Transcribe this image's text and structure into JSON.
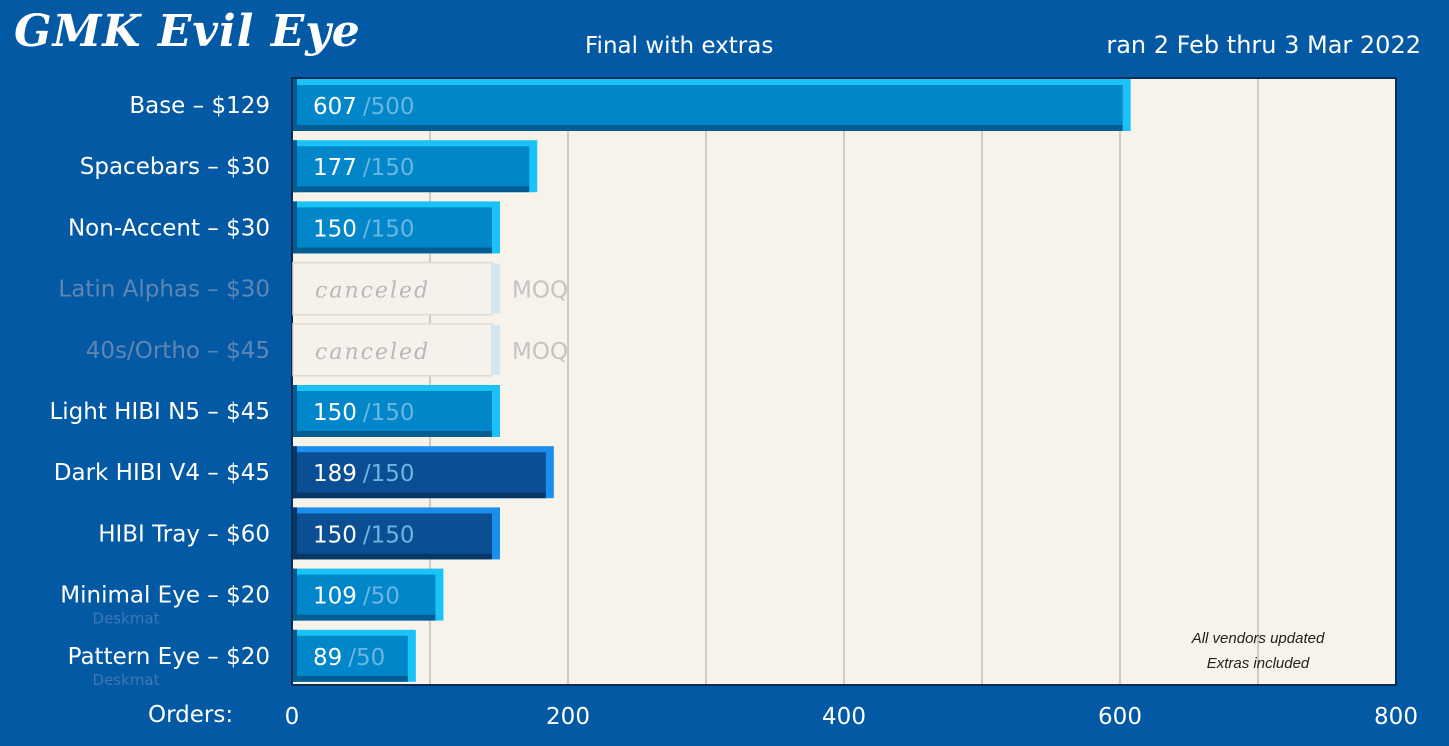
{
  "header": {
    "brand": "GMK Evil Eye",
    "subtitle": "Final with extras",
    "date_range": "ran 2 Feb thru 3 Mar 2022"
  },
  "note": {
    "line1": "All vendors updated",
    "line2": "Extras included"
  },
  "colors": {
    "background": "#0359a3",
    "plot_background": "#f7f2ea",
    "light_bar": "#0186c9",
    "light_bar_accent": "#19c3f7",
    "dark_bar": "#0a4f94",
    "dark_bar_accent": "#1a8eec",
    "goal_text": "#6ab6e0",
    "canceled_text": "#b8b8b8"
  },
  "chart_data": {
    "type": "bar",
    "orientation": "horizontal",
    "xlabel": "Orders:",
    "xlim": [
      0,
      800
    ],
    "xticks": [
      0,
      200,
      400,
      600,
      800
    ],
    "grid": true,
    "bars": [
      {
        "label": "Base – $129",
        "value": 607,
        "goal": 500,
        "value_label": "607",
        "goal_label": "/500",
        "style": "light",
        "status": "active",
        "sublabel": ""
      },
      {
        "label": "Spacebars – $30",
        "value": 177,
        "goal": 150,
        "value_label": "177",
        "goal_label": "/150",
        "style": "light",
        "status": "active",
        "sublabel": ""
      },
      {
        "label": "Non-Accent – $30",
        "value": 150,
        "goal": 150,
        "value_label": "150",
        "goal_label": "/150",
        "style": "light",
        "status": "active",
        "sublabel": ""
      },
      {
        "label": "Latin Alphas – $30",
        "value": 150,
        "goal": 150,
        "value_label": "canceled",
        "goal_label": "MOQ",
        "style": "canceled",
        "status": "canceled",
        "sublabel": ""
      },
      {
        "label": "40s/Ortho – $45",
        "value": 150,
        "goal": 150,
        "value_label": "canceled",
        "goal_label": "MOQ",
        "style": "canceled",
        "status": "canceled",
        "sublabel": ""
      },
      {
        "label": "Light HIBI N5 – $45",
        "value": 150,
        "goal": 150,
        "value_label": "150",
        "goal_label": "/150",
        "style": "light",
        "status": "active",
        "sublabel": ""
      },
      {
        "label": "Dark HIBI V4 – $45",
        "value": 189,
        "goal": 150,
        "value_label": "189",
        "goal_label": "/150",
        "style": "dark",
        "status": "active",
        "sublabel": ""
      },
      {
        "label": "HIBI Tray – $60",
        "value": 150,
        "goal": 150,
        "value_label": "150",
        "goal_label": "/150",
        "style": "dark",
        "status": "active",
        "sublabel": ""
      },
      {
        "label": "Minimal Eye – $20",
        "value": 109,
        "goal": 50,
        "value_label": "109",
        "goal_label": "/50",
        "style": "light",
        "status": "active",
        "sublabel": "Deskmat"
      },
      {
        "label": "Pattern Eye – $20",
        "value": 89,
        "goal": 50,
        "value_label": "89",
        "goal_label": "/50",
        "style": "light",
        "status": "active",
        "sublabel": "Deskmat"
      }
    ]
  }
}
